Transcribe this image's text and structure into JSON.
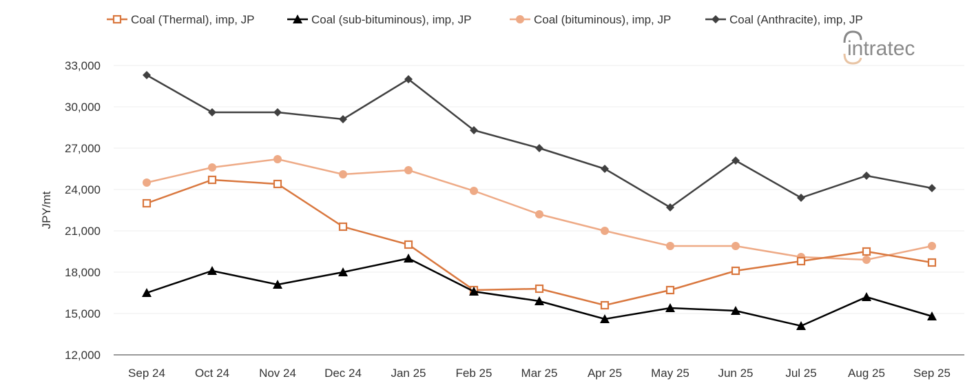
{
  "chart_data": {
    "type": "line",
    "title": "",
    "xlabel": "",
    "ylabel": "JPY/mt",
    "ylim": [
      12000,
      33000
    ],
    "yticks": [
      12000,
      15000,
      18000,
      21000,
      24000,
      27000,
      30000,
      33000
    ],
    "ytick_labels": [
      "12,000",
      "15,000",
      "18,000",
      "21,000",
      "24,000",
      "27,000",
      "30,000",
      "33,000"
    ],
    "grid": true,
    "legend_position": "top",
    "categories": [
      "Sep 24",
      "Oct 24",
      "Nov 24",
      "Dec 24",
      "Jan 25",
      "Feb 25",
      "Mar 25",
      "Apr 25",
      "May 25",
      "Jun 25",
      "Jul 25",
      "Aug 25",
      "Sep 25"
    ],
    "series": [
      {
        "name": "Coal (Thermal), imp, JP",
        "color": "#d9773e",
        "marker": "square-open",
        "values": [
          23000,
          24700,
          24400,
          21300,
          20000,
          16700,
          16800,
          15600,
          16700,
          18100,
          18800,
          19500,
          18700
        ]
      },
      {
        "name": "Coal (sub-bituminous), imp, JP",
        "color": "#000000",
        "marker": "triangle",
        "values": [
          16500,
          18100,
          17100,
          18000,
          19000,
          16600,
          15900,
          14600,
          15400,
          15200,
          14100,
          16200,
          14800
        ]
      },
      {
        "name": "Coal (bituminous), imp, JP",
        "color": "#eeaa86",
        "marker": "circle",
        "values": [
          24500,
          25600,
          26200,
          25100,
          25400,
          23900,
          22200,
          21000,
          19900,
          19900,
          19100,
          18900,
          19900
        ]
      },
      {
        "name": "Coal (Anthracite), imp, JP",
        "color": "#404040",
        "marker": "diamond",
        "values": [
          32300,
          29600,
          29600,
          29100,
          32000,
          28300,
          27000,
          25500,
          22700,
          26100,
          23400,
          25000,
          24100
        ]
      }
    ]
  },
  "logo": {
    "text": "intratec"
  }
}
